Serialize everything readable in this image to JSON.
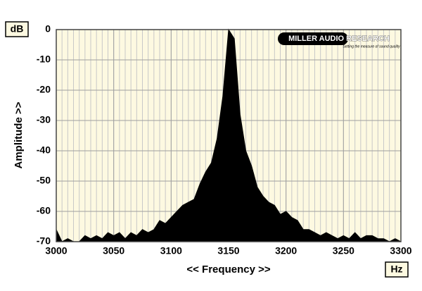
{
  "chart_data": {
    "type": "area",
    "y_unit": "dB",
    "x_unit": "Hz",
    "ylabel": "Amplitude >>",
    "xlabel": "<< Frequency >>",
    "logo": {
      "name": "MILLER AUDIO RESEARCH",
      "tagline": "Setting the measure of sound quality"
    },
    "x": [
      3000,
      3005,
      3010,
      3015,
      3020,
      3025,
      3030,
      3035,
      3040,
      3045,
      3050,
      3055,
      3060,
      3065,
      3070,
      3075,
      3080,
      3085,
      3090,
      3095,
      3100,
      3105,
      3110,
      3115,
      3120,
      3125,
      3130,
      3135,
      3140,
      3145,
      3150,
      3155,
      3160,
      3165,
      3170,
      3175,
      3180,
      3185,
      3190,
      3195,
      3200,
      3205,
      3210,
      3215,
      3220,
      3225,
      3230,
      3235,
      3240,
      3245,
      3250,
      3255,
      3260,
      3265,
      3270,
      3275,
      3280,
      3285,
      3290,
      3295,
      3300
    ],
    "series": [
      {
        "color": "#000000",
        "values": [
          -66,
          -70,
          -69,
          -70,
          -70,
          -68,
          -69,
          -68,
          -69,
          -67,
          -68,
          -67,
          -69,
          -67,
          -68,
          -66,
          -67,
          -66,
          -63,
          -64,
          -62,
          -60,
          -58,
          -57,
          -56,
          -51,
          -47,
          -44,
          -36,
          -22,
          0,
          -3,
          -28,
          -40,
          -45,
          -52,
          -55,
          -57,
          -58,
          -61,
          -60,
          -62,
          -63,
          -66,
          -66,
          -67,
          -68,
          -67,
          -68,
          -69,
          -68,
          -69,
          -67,
          -69,
          -68,
          -68,
          -69,
          -69,
          -70,
          -69,
          -70
        ]
      }
    ],
    "xlim": [
      3000,
      3300
    ],
    "xticks": [
      3000,
      3050,
      3100,
      3150,
      3200,
      3250,
      3300
    ],
    "ylim": [
      -70,
      0
    ],
    "yticks": [
      0,
      -10,
      -20,
      -30,
      -40,
      -50,
      -60,
      -70
    ],
    "grid": true,
    "minor_grid_step": 5,
    "background": "#fdf9e1"
  }
}
